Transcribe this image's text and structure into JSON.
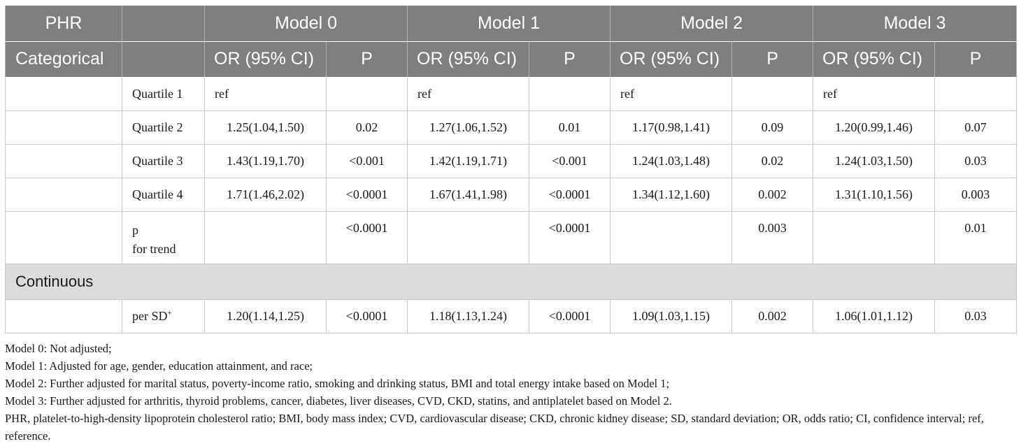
{
  "header": {
    "row1": [
      "PHR",
      "",
      "Model 0",
      "Model 1",
      "Model 2",
      "Model 3"
    ],
    "row2_first": "Categorical",
    "or_label": "OR (95% CI)",
    "p_label": "P"
  },
  "rows": [
    {
      "label": "Quartile 1",
      "values": [
        "ref",
        "",
        "ref",
        "",
        "ref",
        "",
        "ref",
        ""
      ]
    },
    {
      "label": "Quartile 2",
      "values": [
        "1.25(1.04,1.50)",
        "0.02",
        "1.27(1.06,1.52)",
        "0.01",
        "1.17(0.98,1.41)",
        "0.09",
        "1.20(0.99,1.46)",
        "0.07"
      ]
    },
    {
      "label": "Quartile 3",
      "values": [
        "1.43(1.19,1.70)",
        "<0.001",
        "1.42(1.19,1.71)",
        "<0.001",
        "1.24(1.03,1.48)",
        "0.02",
        "1.24(1.03,1.50)",
        "0.03"
      ]
    },
    {
      "label": "Quartile 4",
      "values": [
        "1.71(1.46,2.02)",
        "<0.0001",
        "1.67(1.41,1.98)",
        "<0.0001",
        "1.34(1.12,1.60)",
        "0.002",
        "1.31(1.10,1.56)",
        "0.003"
      ]
    }
  ],
  "trend": {
    "label_line1": "p",
    "label_line2": "for trend",
    "values": [
      "",
      "<0.0001",
      "",
      "<0.0001",
      "",
      "0.003",
      "",
      "0.01"
    ]
  },
  "section_continuous": "Continuous",
  "continuous_row": {
    "label": "per SD",
    "sup": "+",
    "values": [
      "1.20(1.14,1.25)",
      "<0.0001",
      "1.18(1.13,1.24)",
      "<0.0001",
      "1.09(1.03,1.15)",
      "0.002",
      "1.06(1.01,1.12)",
      "0.03"
    ]
  },
  "notes": [
    "Model 0: Not adjusted;",
    "Model 1: Adjusted for age, gender, education attainment, and race;",
    "Model 2: Further adjusted for marital status, poverty-income ratio, smoking and drinking status, BMI and total energy intake based on Model 1;",
    "Model 3: Further adjusted for arthritis, thyroid problems, cancer, diabetes, liver diseases, CVD, CKD, statins, and antiplatelet based on Model 2.",
    "PHR, platelet-to-high-density lipoprotein cholesterol ratio; BMI, body mass index; CVD, cardiovascular disease; CKD, chronic kidney disease; SD, standard deviation; OR, odds ratio; CI, confidence interval; ref, reference."
  ]
}
